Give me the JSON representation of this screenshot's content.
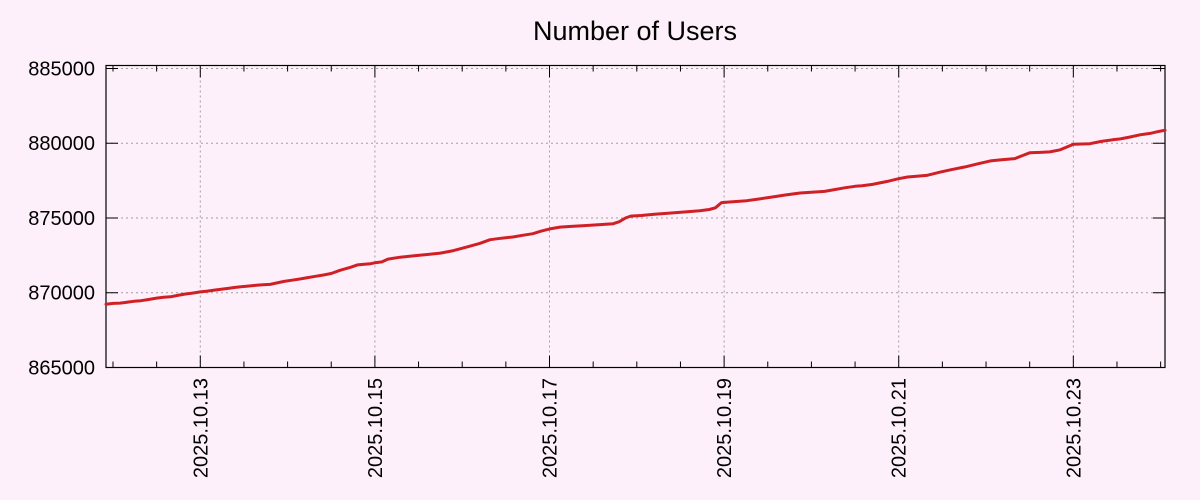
{
  "page": {
    "background": "#fdf0fa"
  },
  "chart_data": {
    "type": "line",
    "title": "Number of Users",
    "xlabel": "",
    "ylabel": "",
    "legend": "none",
    "grid": true,
    "title_color": "#000000",
    "axis_color": "#000000",
    "grid_color": "#a0a0a0",
    "line_color": "#d02026",
    "text_color": "#000000",
    "x_axis_note": "t = days since 2025-10-11 00:00; axis spans ~2025-10-11 22:00 to ~2025-10-24 01:00",
    "xlim": [
      0.92,
      13.05
    ],
    "ylim": [
      865000,
      885200
    ],
    "x_minor_step": 0.5,
    "y_ticks": [
      {
        "v": 865000,
        "label": "865000"
      },
      {
        "v": 870000,
        "label": "870000"
      },
      {
        "v": 875000,
        "label": "875000"
      },
      {
        "v": 880000,
        "label": "880000"
      },
      {
        "v": 885000,
        "label": "885000"
      }
    ],
    "x_ticks": [
      {
        "t": 2,
        "label": "2025.10.13"
      },
      {
        "t": 4,
        "label": "2025.10.15"
      },
      {
        "t": 6,
        "label": "2025.10.17"
      },
      {
        "t": 8,
        "label": "2025.10.19"
      },
      {
        "t": 10,
        "label": "2025.10.21"
      },
      {
        "t": 12,
        "label": "2025.10.23"
      }
    ],
    "series": [
      {
        "name": "Number of Users",
        "points": [
          [
            0.92,
            869230
          ],
          [
            1.0,
            869290
          ],
          [
            1.08,
            869310
          ],
          [
            1.16,
            869370
          ],
          [
            1.24,
            869430
          ],
          [
            1.32,
            869470
          ],
          [
            1.4,
            869540
          ],
          [
            1.5,
            869640
          ],
          [
            1.58,
            869700
          ],
          [
            1.66,
            869730
          ],
          [
            1.74,
            869820
          ],
          [
            1.82,
            869910
          ],
          [
            1.9,
            869970
          ],
          [
            2.0,
            870060
          ],
          [
            2.08,
            870110
          ],
          [
            2.16,
            870180
          ],
          [
            2.24,
            870230
          ],
          [
            2.32,
            870290
          ],
          [
            2.4,
            870360
          ],
          [
            2.48,
            870410
          ],
          [
            2.56,
            870450
          ],
          [
            2.64,
            870500
          ],
          [
            2.72,
            870530
          ],
          [
            2.8,
            870560
          ],
          [
            2.88,
            870660
          ],
          [
            2.96,
            870760
          ],
          [
            3.05,
            870840
          ],
          [
            3.14,
            870920
          ],
          [
            3.23,
            871010
          ],
          [
            3.32,
            871100
          ],
          [
            3.41,
            871190
          ],
          [
            3.5,
            871290
          ],
          [
            3.6,
            871500
          ],
          [
            3.72,
            871700
          ],
          [
            3.8,
            871860
          ],
          [
            3.88,
            871910
          ],
          [
            3.95,
            871940
          ],
          [
            4.0,
            872000
          ],
          [
            4.08,
            872060
          ],
          [
            4.15,
            872250
          ],
          [
            4.29,
            872380
          ],
          [
            4.45,
            872480
          ],
          [
            4.6,
            872560
          ],
          [
            4.75,
            872650
          ],
          [
            4.9,
            872820
          ],
          [
            5.05,
            873050
          ],
          [
            5.2,
            873300
          ],
          [
            5.32,
            873550
          ],
          [
            5.45,
            873650
          ],
          [
            5.58,
            873730
          ],
          [
            5.7,
            873850
          ],
          [
            5.81,
            873950
          ],
          [
            5.9,
            874120
          ],
          [
            6.02,
            874290
          ],
          [
            6.12,
            874390
          ],
          [
            6.25,
            874440
          ],
          [
            6.4,
            874490
          ],
          [
            6.58,
            874560
          ],
          [
            6.73,
            874620
          ],
          [
            6.8,
            874750
          ],
          [
            6.87,
            875000
          ],
          [
            6.93,
            875130
          ],
          [
            7.05,
            875170
          ],
          [
            7.2,
            875250
          ],
          [
            7.32,
            875300
          ],
          [
            7.45,
            875360
          ],
          [
            7.58,
            875420
          ],
          [
            7.72,
            875490
          ],
          [
            7.83,
            875570
          ],
          [
            7.9,
            875680
          ],
          [
            7.97,
            876030
          ],
          [
            8.1,
            876080
          ],
          [
            8.26,
            876160
          ],
          [
            8.4,
            876270
          ],
          [
            8.58,
            876430
          ],
          [
            8.7,
            876540
          ],
          [
            8.87,
            876670
          ],
          [
            9.0,
            876720
          ],
          [
            9.15,
            876780
          ],
          [
            9.28,
            876910
          ],
          [
            9.38,
            877020
          ],
          [
            9.5,
            877120
          ],
          [
            9.58,
            877160
          ],
          [
            9.7,
            877250
          ],
          [
            9.87,
            877450
          ],
          [
            10.0,
            877630
          ],
          [
            10.1,
            877740
          ],
          [
            10.19,
            877780
          ],
          [
            10.32,
            877850
          ],
          [
            10.47,
            878060
          ],
          [
            10.6,
            878230
          ],
          [
            10.76,
            878420
          ],
          [
            10.9,
            878620
          ],
          [
            11.05,
            878820
          ],
          [
            11.18,
            878890
          ],
          [
            11.33,
            878970
          ],
          [
            11.42,
            879180
          ],
          [
            11.5,
            879360
          ],
          [
            11.62,
            879390
          ],
          [
            11.73,
            879420
          ],
          [
            11.85,
            879560
          ],
          [
            11.95,
            879810
          ],
          [
            12.0,
            879930
          ],
          [
            12.1,
            879950
          ],
          [
            12.19,
            879970
          ],
          [
            12.32,
            880120
          ],
          [
            12.45,
            880230
          ],
          [
            12.54,
            880290
          ],
          [
            12.65,
            880420
          ],
          [
            12.77,
            880570
          ],
          [
            12.88,
            880660
          ],
          [
            12.97,
            880780
          ],
          [
            13.05,
            880870
          ]
        ]
      }
    ]
  }
}
